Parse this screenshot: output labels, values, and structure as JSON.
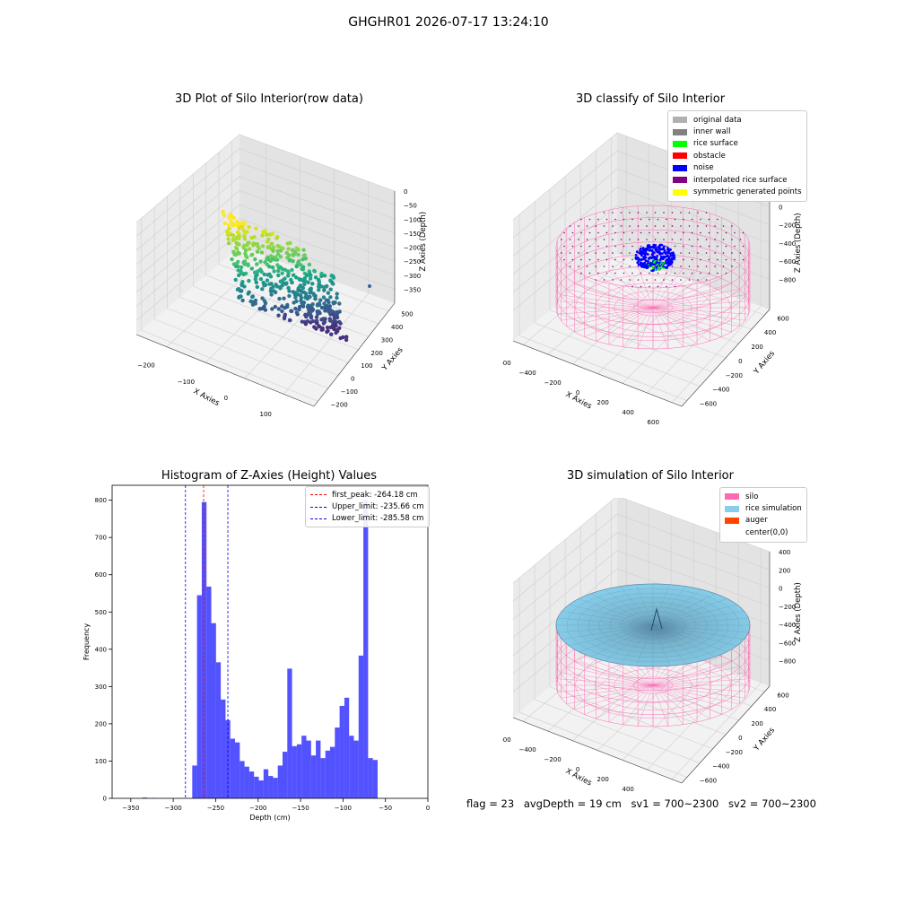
{
  "figure": {
    "suptitle": "GHGHR01 2026-07-17 13:24:10",
    "info": {
      "flag": "flag = 23",
      "avg_depth": "avgDepth = 19 cm",
      "sv1": "sv1 = 700~2300",
      "sv2": "sv2 = 700~2300"
    },
    "colors": {
      "silo": "#ff69b4",
      "rice_simulation": "#87ceeb",
      "auger": "#ff4500",
      "hist_bar": "#0000ff",
      "rice_surface": "#00ff00",
      "obstacle": "#ff0000",
      "noise": "#0000ff",
      "interpolated": "#800080",
      "symmetric": "#ffff00",
      "original": "#b0b0b0",
      "inner_wall": "#808080"
    }
  },
  "panel1": {
    "title": "3D Plot of Silo Interior(row data)",
    "xlabel": "X Axies",
    "ylabel": "Y Axies",
    "zlabel": "Z Axies (Depth)",
    "xticks": [
      "−200",
      "−100",
      "0",
      "100"
    ],
    "yticks": [
      "−200",
      "−100",
      "0",
      "100",
      "200",
      "300",
      "400",
      "500"
    ],
    "zticks": [
      "0",
      "−50",
      "−100",
      "−150",
      "−200",
      "−250",
      "−300",
      "−350"
    ],
    "colormap": "viridis"
  },
  "panel2": {
    "title": "3D classify of Silo Interior",
    "xlabel": "X Axies",
    "ylabel": "Y Axies",
    "zlabel": "Z Axies (Depth)",
    "xticks": [
      "−600",
      "−400",
      "−200",
      "0",
      "200",
      "400",
      "600"
    ],
    "yticks": [
      "−600",
      "−400",
      "−200",
      "0",
      "200",
      "400",
      "600"
    ],
    "zticks": [
      "200",
      "0",
      "−200",
      "−400",
      "−600",
      "−800"
    ],
    "legend": [
      {
        "label": "original data",
        "color": "#b0b0b0"
      },
      {
        "label": "inner wall",
        "color": "#808080"
      },
      {
        "label": "rice surface",
        "color": "#00ff00"
      },
      {
        "label": "obstacle",
        "color": "#ff0000"
      },
      {
        "label": "noise",
        "color": "#0000ff"
      },
      {
        "label": "interpolated rice surface",
        "color": "#800080"
      },
      {
        "label": "symmetric generated points",
        "color": "#ffff00"
      }
    ]
  },
  "panel4": {
    "title": "3D simulation of Silo Interior",
    "xlabel": "X Axies",
    "ylabel": "Y Axies",
    "zlabel": "Z Axies (Depth)",
    "xticks": [
      "−600",
      "−400",
      "−200",
      "0",
      "200",
      "400",
      "600"
    ],
    "yticks": [
      "−600",
      "−400",
      "−200",
      "0",
      "200",
      "400",
      "600"
    ],
    "zticks": [
      "400",
      "200",
      "0",
      "−200",
      "−400",
      "−600",
      "−800"
    ],
    "legend": [
      {
        "label": "silo",
        "color": "#ff69b4"
      },
      {
        "label": "rice simulation",
        "color": "#87ceeb"
      },
      {
        "label": "auger",
        "color": "#ff4500"
      },
      {
        "label": "center(0,0)",
        "color": "#ffffff"
      }
    ]
  },
  "chart_data": [
    {
      "type": "bar",
      "title": "Histogram of Z-Axies (Height) Values",
      "xlabel": "Depth (cm)",
      "ylabel": "Frequency",
      "xlim": [
        -372,
        0
      ],
      "ylim": [
        0,
        840
      ],
      "xticks": [
        -350,
        -300,
        -250,
        -200,
        -150,
        -100,
        -50,
        0
      ],
      "yticks": [
        0,
        100,
        200,
        300,
        400,
        500,
        600,
        700,
        800
      ],
      "bin_width": 5.6,
      "bins": [
        {
          "x": -336.4,
          "y": 2
        },
        {
          "x": -325.2,
          "y": 1
        },
        {
          "x": -277.6,
          "y": 88
        },
        {
          "x": -272.0,
          "y": 545
        },
        {
          "x": -266.4,
          "y": 795
        },
        {
          "x": -260.8,
          "y": 568
        },
        {
          "x": -255.2,
          "y": 470
        },
        {
          "x": -249.6,
          "y": 365
        },
        {
          "x": -244.0,
          "y": 265
        },
        {
          "x": -238.4,
          "y": 210
        },
        {
          "x": -232.8,
          "y": 160
        },
        {
          "x": -227.2,
          "y": 150
        },
        {
          "x": -221.6,
          "y": 100
        },
        {
          "x": -216.0,
          "y": 85
        },
        {
          "x": -210.4,
          "y": 72
        },
        {
          "x": -204.8,
          "y": 58
        },
        {
          "x": -199.2,
          "y": 48
        },
        {
          "x": -193.6,
          "y": 78
        },
        {
          "x": -188.0,
          "y": 60
        },
        {
          "x": -182.4,
          "y": 55
        },
        {
          "x": -176.8,
          "y": 88
        },
        {
          "x": -171.2,
          "y": 125
        },
        {
          "x": -165.6,
          "y": 348
        },
        {
          "x": -160.0,
          "y": 140
        },
        {
          "x": -154.4,
          "y": 145
        },
        {
          "x": -148.8,
          "y": 168
        },
        {
          "x": -143.2,
          "y": 155
        },
        {
          "x": -137.6,
          "y": 115
        },
        {
          "x": -132.0,
          "y": 155
        },
        {
          "x": -126.4,
          "y": 108
        },
        {
          "x": -120.8,
          "y": 128
        },
        {
          "x": -115.2,
          "y": 138
        },
        {
          "x": -109.6,
          "y": 190
        },
        {
          "x": -104.0,
          "y": 248
        },
        {
          "x": -98.4,
          "y": 270
        },
        {
          "x": -92.8,
          "y": 168
        },
        {
          "x": -87.2,
          "y": 155
        },
        {
          "x": -81.6,
          "y": 383
        },
        {
          "x": -76.0,
          "y": 800
        },
        {
          "x": -70.4,
          "y": 108
        },
        {
          "x": -64.8,
          "y": 103
        }
      ],
      "vlines": [
        {
          "label": "first_peak: -264.18 cm",
          "x": -264.18,
          "color": "#ff0000"
        },
        {
          "label": "Upper_limit: -235.66 cm",
          "x": -235.66,
          "color": "#0000ff"
        },
        {
          "label": "Lower_limit: -285.58 cm",
          "x": -285.58,
          "color": "#0000ff"
        }
      ]
    }
  ]
}
